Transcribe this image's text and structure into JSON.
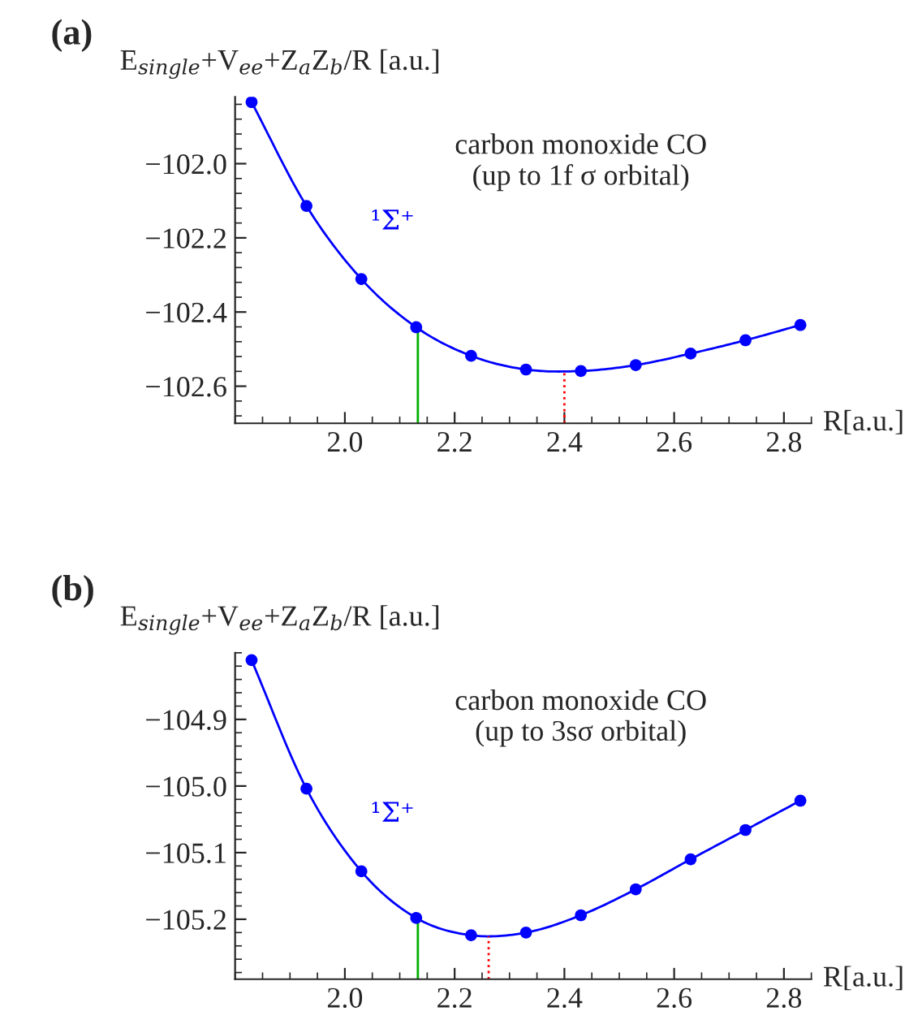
{
  "chart_data": [
    {
      "type": "line",
      "title": "(a)",
      "ylabel": "E$_{single}$+V$_{ee}$+Z$_{a}$Z$_{b}$/R [a.u.]",
      "xlabel": "R[a.u.]",
      "x": [
        1.83,
        1.93,
        2.03,
        2.13,
        2.23,
        2.33,
        2.43,
        2.53,
        2.63,
        2.73,
        2.83
      ],
      "series": [
        {
          "name": "¹Σ⁺",
          "color": "#0000ff",
          "values": [
            -101.834,
            -102.114,
            -102.311,
            -102.441,
            -102.518,
            -102.555,
            -102.559,
            -102.543,
            -102.512,
            -102.476,
            -102.435
          ]
        }
      ],
      "marker": "circle",
      "line_style": "solid",
      "xlim": [
        1.8,
        2.85
      ],
      "ylim": [
        -102.7,
        -101.82
      ],
      "xticks": [
        {
          "value": 2.0,
          "label": "2.0"
        },
        {
          "value": 2.2,
          "label": "2.2"
        },
        {
          "value": 2.4,
          "label": "2.4"
        },
        {
          "value": 2.6,
          "label": "2.6"
        },
        {
          "value": 2.8,
          "label": "2.8"
        }
      ],
      "yticks": [
        {
          "value": -102.0,
          "label": "−102.0"
        },
        {
          "value": -102.2,
          "label": "−102.2"
        },
        {
          "value": -102.4,
          "label": "−102.4"
        },
        {
          "value": -102.6,
          "label": "−102.6"
        }
      ],
      "ref_lines": [
        {
          "axis": "x",
          "value": 2.133,
          "color": "#00b000",
          "line_style": "solid"
        },
        {
          "axis": "x",
          "value": 2.4,
          "color": "#ff0000",
          "line_style": "dotted"
        }
      ],
      "annotations": [
        "carbon monoxide CO\n(up to 1f σ orbital)"
      ],
      "grid": false,
      "legend": false
    },
    {
      "type": "line",
      "title": "(b)",
      "ylabel": "E$_{single}$+V$_{ee}$+Z$_{a}$Z$_{b}$/R [a.u.]",
      "xlabel": "R[a.u.]",
      "x": [
        1.83,
        1.93,
        2.03,
        2.13,
        2.23,
        2.33,
        2.43,
        2.53,
        2.63,
        2.73,
        2.83
      ],
      "series": [
        {
          "name": "¹Σ⁺",
          "color": "#0000ff",
          "values": [
            -104.811,
            -105.004,
            -105.128,
            -105.198,
            -105.224,
            -105.22,
            -105.194,
            -105.155,
            -105.11,
            -105.066,
            -105.022
          ]
        }
      ],
      "marker": "circle",
      "line_style": "solid",
      "xlim": [
        1.8,
        2.85
      ],
      "ylim": [
        -105.29,
        -104.8
      ],
      "xticks": [
        {
          "value": 2.0,
          "label": "2.0"
        },
        {
          "value": 2.2,
          "label": "2.2"
        },
        {
          "value": 2.4,
          "label": "2.4"
        },
        {
          "value": 2.6,
          "label": "2.6"
        },
        {
          "value": 2.8,
          "label": "2.8"
        }
      ],
      "yticks": [
        {
          "value": -104.9,
          "label": "−104.9"
        },
        {
          "value": -105.0,
          "label": "−105.0"
        },
        {
          "value": -105.1,
          "label": "−105.1"
        },
        {
          "value": -105.2,
          "label": "−105.2"
        }
      ],
      "ref_lines": [
        {
          "axis": "x",
          "value": 2.133,
          "color": "#00b000",
          "line_style": "solid"
        },
        {
          "axis": "x",
          "value": 2.262,
          "color": "#ff0000",
          "line_style": "dotted"
        }
      ],
      "annotations": [
        "carbon monoxide CO\n(up to 3sσ orbital)"
      ],
      "grid": false,
      "legend": false
    }
  ]
}
